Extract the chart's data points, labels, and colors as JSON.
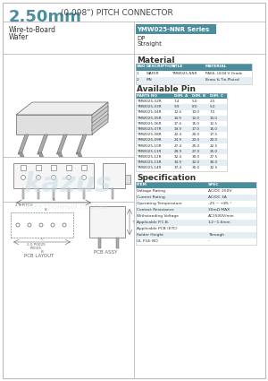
{
  "title_big": "2.50mm",
  "title_small": " (0.098\") PITCH CONNECTOR",
  "title_color": "#4a8d9e",
  "border_color": "#bbbbbb",
  "bg_color": "#ffffff",
  "series_box_text": "YMW025-NNR Series",
  "series_box_color": "#4a8d9e",
  "series_sub1": "DP",
  "series_sub2": "Straight",
  "material_title": "Material",
  "material_headers": [
    "SNO",
    "DESCRIPTION",
    "TITLE",
    "MATERIAL"
  ],
  "material_rows": [
    [
      "1",
      "WAFER",
      "YMW025-NNR",
      "PA66, UL94 V Grade"
    ],
    [
      "2",
      "PIN",
      "",
      "Brass & Tin-Plated"
    ]
  ],
  "avail_pin_title": "Available Pin",
  "avail_headers": [
    "PARTS NO",
    "DIM. A",
    "DIM. B",
    "DIM. C"
  ],
  "avail_rows": [
    [
      "YMW025-02R",
      "7.4",
      "5.0",
      "2.5"
    ],
    [
      "YMW025-03R",
      "9.9",
      "8.0",
      "5.0"
    ],
    [
      "YMW025-04R",
      "12.4",
      "10.0",
      "7.5"
    ],
    [
      "YMW025-05R",
      "14.9",
      "12.0",
      "10.0"
    ],
    [
      "YMW025-06R",
      "17.4",
      "15.0",
      "12.5"
    ],
    [
      "YMW025-07R",
      "19.9",
      "17.0",
      "15.0"
    ],
    [
      "YMW025-08R",
      "22.4",
      "20.0",
      "17.5"
    ],
    [
      "YMW025-09R",
      "24.9",
      "22.0",
      "20.0"
    ],
    [
      "YMW025-10R",
      "27.4",
      "25.0",
      "22.5"
    ],
    [
      "YMW025-11R",
      "29.9",
      "27.0",
      "25.0"
    ],
    [
      "YMW025-12R",
      "32.4",
      "30.0",
      "27.5"
    ],
    [
      "YMW025-13R",
      "34.9",
      "32.0",
      "30.0"
    ],
    [
      "YMW025-14R",
      "37.4",
      "35.0",
      "32.5"
    ]
  ],
  "spec_title": "Specification",
  "spec_headers": [
    "ITEM",
    "SPEC"
  ],
  "spec_rows": [
    [
      "Voltage Rating",
      "AC/DC 250V"
    ],
    [
      "Current Rating",
      "AC/DC 3A"
    ],
    [
      "Operating Temperature",
      "-25 ~ +85 °"
    ],
    [
      "Contact Resistance",
      "30mΩ MAX"
    ],
    [
      "Withstanding Voltage",
      "AC1500V/min"
    ],
    [
      "Applicable P.C.B.",
      "1.2~1.6mm"
    ],
    [
      "Applicable PCB (ETC)",
      ""
    ],
    [
      "Solder Height",
      "Through"
    ],
    [
      "UL FILE NO",
      "-"
    ]
  ],
  "header_row_color": "#4a8d9e",
  "header_text_color": "#ffffff",
  "row_alt_color": "#e5eef2",
  "row_normal_color": "#ffffff",
  "text_color": "#333333",
  "line_color": "#999999"
}
